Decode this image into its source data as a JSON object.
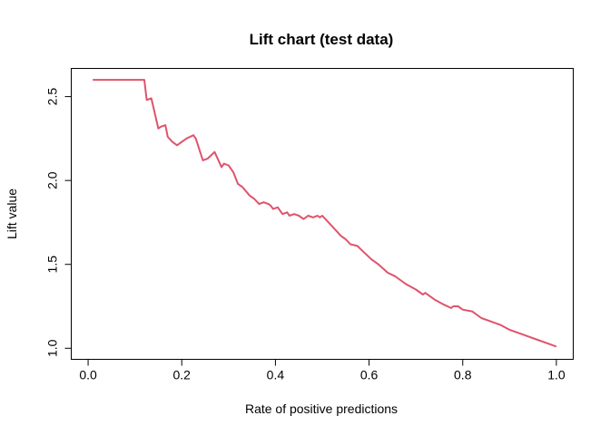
{
  "chart_data": {
    "type": "line",
    "title": "Lift chart (test data)",
    "xlabel": "Rate of positive predictions",
    "ylabel": "Lift value",
    "xlim": [
      -0.036,
      1.036
    ],
    "ylim": [
      0.934,
      2.668
    ],
    "xticks": [
      {
        "value": 0.0,
        "label": "0.0"
      },
      {
        "value": 0.2,
        "label": "0.2"
      },
      {
        "value": 0.4,
        "label": "0.4"
      },
      {
        "value": 0.6,
        "label": "0.6"
      },
      {
        "value": 0.8,
        "label": "0.8"
      },
      {
        "value": 1.0,
        "label": "1.0"
      }
    ],
    "yticks": [
      {
        "value": 1.0,
        "label": "1.0"
      },
      {
        "value": 1.5,
        "label": "1.5"
      },
      {
        "value": 2.0,
        "label": "2.0"
      },
      {
        "value": 2.5,
        "label": "2.5"
      }
    ],
    "grid": false,
    "color": "#DF536B",
    "series": [
      {
        "x": [
          0.01,
          0.12,
          0.125,
          0.135,
          0.14,
          0.15,
          0.155,
          0.165,
          0.17,
          0.18,
          0.19,
          0.2,
          0.21,
          0.225,
          0.23,
          0.245,
          0.255,
          0.27,
          0.275,
          0.285,
          0.29,
          0.3,
          0.31,
          0.32,
          0.33,
          0.345,
          0.355,
          0.365,
          0.375,
          0.385,
          0.39,
          0.395,
          0.405,
          0.415,
          0.425,
          0.43,
          0.44,
          0.45,
          0.46,
          0.47,
          0.48,
          0.49,
          0.495,
          0.5,
          0.51,
          0.52,
          0.53,
          0.54,
          0.55,
          0.56,
          0.575,
          0.59,
          0.605,
          0.62,
          0.64,
          0.655,
          0.66,
          0.68,
          0.7,
          0.715,
          0.72,
          0.74,
          0.76,
          0.775,
          0.78,
          0.79,
          0.8,
          0.82,
          0.84,
          0.86,
          0.88,
          0.9,
          0.92,
          0.94,
          0.96,
          0.98,
          1.0
        ],
        "y": [
          2.6,
          2.6,
          2.48,
          2.49,
          2.43,
          2.31,
          2.32,
          2.33,
          2.26,
          2.23,
          2.21,
          2.23,
          2.25,
          2.27,
          2.25,
          2.12,
          2.13,
          2.17,
          2.14,
          2.08,
          2.1,
          2.09,
          2.05,
          1.98,
          1.96,
          1.91,
          1.89,
          1.86,
          1.87,
          1.86,
          1.85,
          1.83,
          1.84,
          1.8,
          1.81,
          1.79,
          1.8,
          1.79,
          1.77,
          1.79,
          1.78,
          1.79,
          1.78,
          1.79,
          1.76,
          1.73,
          1.7,
          1.67,
          1.65,
          1.62,
          1.61,
          1.57,
          1.53,
          1.5,
          1.45,
          1.43,
          1.42,
          1.38,
          1.35,
          1.32,
          1.33,
          1.29,
          1.26,
          1.24,
          1.25,
          1.25,
          1.23,
          1.22,
          1.18,
          1.16,
          1.14,
          1.11,
          1.09,
          1.07,
          1.05,
          1.03,
          1.01
        ]
      }
    ]
  }
}
